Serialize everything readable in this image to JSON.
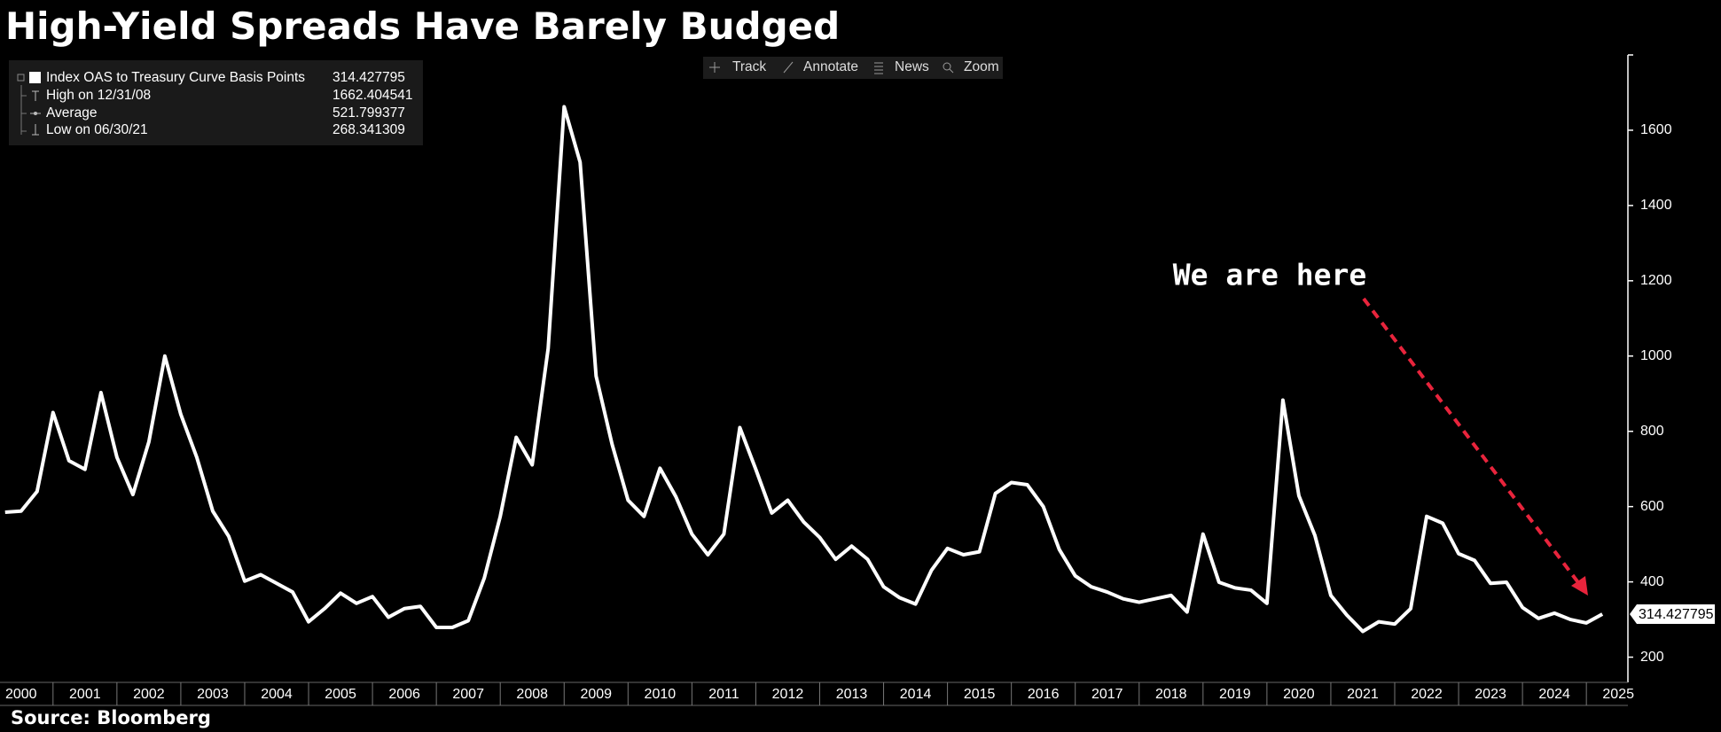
{
  "chart_data": {
    "type": "line",
    "title": "High-Yield Spreads Have Barely Budged",
    "source": "Source: Bloomberg",
    "annotation": "We are here",
    "toolbar": [
      "Track",
      "Annotate",
      "News",
      "Zoom"
    ],
    "x": [
      2000.25,
      2000.5,
      2000.75,
      2001,
      2001.25,
      2001.5,
      2001.75,
      2002,
      2002.25,
      2002.5,
      2002.75,
      2003,
      2003.25,
      2003.5,
      2003.75,
      2004,
      2004.25,
      2004.5,
      2004.75,
      2005,
      2005.25,
      2005.5,
      2005.75,
      2006,
      2006.25,
      2006.5,
      2006.75,
      2007,
      2007.25,
      2007.5,
      2007.75,
      2008,
      2008.25,
      2008.5,
      2008.75,
      2009,
      2009.25,
      2009.5,
      2009.75,
      2010,
      2010.25,
      2010.5,
      2010.75,
      2011,
      2011.25,
      2011.5,
      2011.75,
      2012,
      2012.25,
      2012.5,
      2012.75,
      2013,
      2013.25,
      2013.5,
      2013.75,
      2014,
      2014.25,
      2014.5,
      2014.75,
      2015,
      2015.25,
      2015.5,
      2015.75,
      2016,
      2016.25,
      2016.5,
      2016.75,
      2017,
      2017.25,
      2017.5,
      2017.75,
      2018,
      2018.25,
      2018.5,
      2018.75,
      2019,
      2019.25,
      2019.5,
      2019.75,
      2020,
      2020.25,
      2020.5,
      2020.75,
      2021,
      2021.25,
      2021.5,
      2021.75,
      2022,
      2022.25,
      2022.5,
      2022.75,
      2023,
      2023.25,
      2023.5,
      2023.75,
      2024,
      2024.25,
      2024.5,
      2024.75,
      2025,
      2025.25
    ],
    "series": [
      {
        "name": "Index OAS to Treasury Curve Basis Points",
        "color": "#ffffff",
        "values": [
          585,
          588,
          640,
          850,
          722,
          699,
          903,
          731,
          632,
          772,
          1000,
          845,
          731,
          588,
          521,
          402,
          419,
          396,
          373,
          294,
          329,
          370,
          343,
          361,
          306,
          329,
          335,
          279,
          279,
          297,
          410,
          574,
          784,
          711,
          1020,
          1662.404541,
          1515,
          947,
          766,
          617,
          574,
          702,
          626,
          527,
          472,
          527,
          810,
          699,
          583,
          617,
          559,
          518,
          460,
          495,
          460,
          387,
          358,
          341,
          431,
          489,
          472,
          480,
          635,
          664,
          658,
          600,
          486,
          416,
          387,
          373,
          355,
          346,
          355,
          364,
          320,
          527,
          399,
          384,
          378,
          343,
          883,
          629,
          524,
          364,
          312,
          268.341309,
          294,
          288,
          329,
          574,
          556,
          475,
          457,
          396,
          399,
          332,
          303,
          317,
          300,
          291,
          314.427795
        ]
      }
    ],
    "stats": [
      {
        "label": "High on 12/31/08"
      },
      {
        "label": "Average",
        "value": 521.799377
      },
      {
        "label": "Low on 06/30/21"
      }
    ],
    "xlim": [
      2000.17,
      2025.65
    ],
    "xticks": [
      2000,
      2001,
      2002,
      2003,
      2004,
      2005,
      2006,
      2007,
      2008,
      2009,
      2010,
      2011,
      2012,
      2013,
      2014,
      2015,
      2016,
      2017,
      2018,
      2019,
      2020,
      2021,
      2022,
      2023,
      2024,
      2025
    ],
    "ylim": [
      133,
      1800
    ],
    "yticks": [
      200,
      400,
      600,
      800,
      1000,
      1200,
      1400,
      1600
    ],
    "annotation_color": "#e8243c",
    "background": "#000000"
  }
}
